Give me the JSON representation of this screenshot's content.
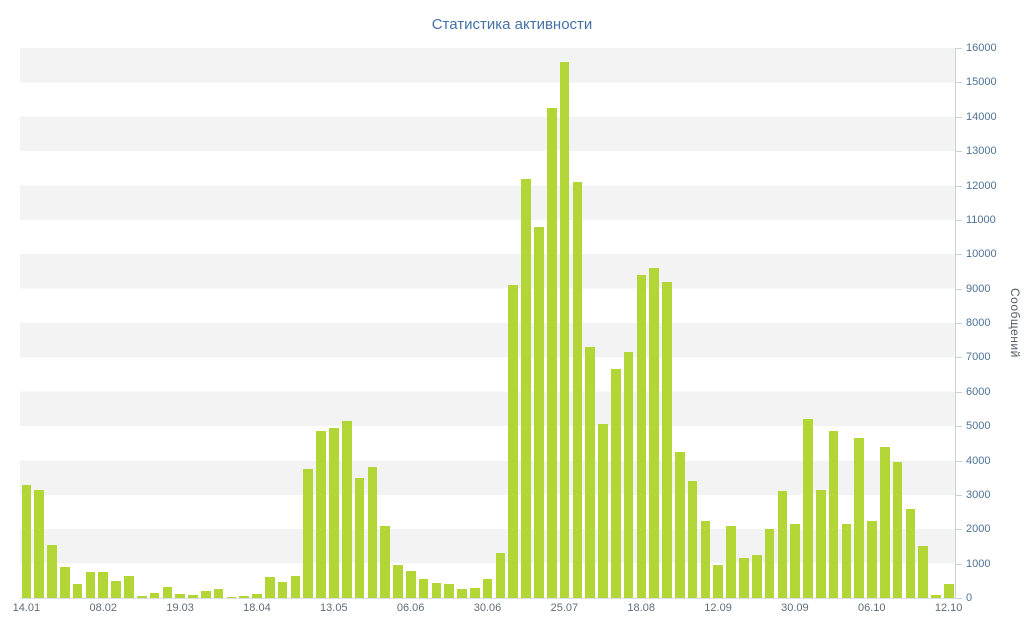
{
  "header": {
    "title": "Статистика активности"
  },
  "y_axis": {
    "title": "Сообщений"
  },
  "colors": {
    "bar": "#b1d636",
    "band": "#f3f3f3",
    "title": "#4572a7",
    "y_tick_label": "#4f7396",
    "x_tick_label": "#5f6d7a",
    "axis_line": "#c8d2dc"
  },
  "chart_data": {
    "type": "bar",
    "title": "Статистика активности",
    "xlabel": "",
    "ylabel": "Сообщений",
    "ylim": [
      0,
      16000
    ],
    "ytick_step": 1000,
    "y_axis_position": "right",
    "grid": "alternating horizontal bands per 1000, gray on top band",
    "legend": "none",
    "x_tick_labels": [
      "14.01",
      "08.02",
      "19.03",
      "18.04",
      "13.05",
      "06.06",
      "30.06",
      "25.07",
      "18.08",
      "12.09",
      "30.09",
      "06.10",
      "12.10"
    ],
    "x_tick_indices": [
      0,
      6,
      12,
      18,
      24,
      30,
      36,
      42,
      48,
      54,
      60,
      66,
      72
    ],
    "values": [
      3300,
      3150,
      1550,
      900,
      400,
      750,
      760,
      500,
      650,
      60,
      150,
      320,
      120,
      100,
      200,
      260,
      40,
      60,
      110,
      600,
      460,
      650,
      3750,
      4850,
      4950,
      5150,
      3500,
      3800,
      2100,
      950,
      800,
      550,
      450,
      400,
      250,
      300,
      550,
      1300,
      9100,
      12200,
      10800,
      14250,
      15600,
      12100,
      7300,
      5050,
      6650,
      7150,
      9400,
      9600,
      9200,
      4250,
      3400,
      2250,
      950,
      2100,
      1150,
      1250,
      2000,
      3100,
      2150,
      5200,
      3150,
      4850,
      2150,
      4650,
      2250,
      4400,
      3950,
      2600,
      1500,
      100,
      400
    ]
  }
}
